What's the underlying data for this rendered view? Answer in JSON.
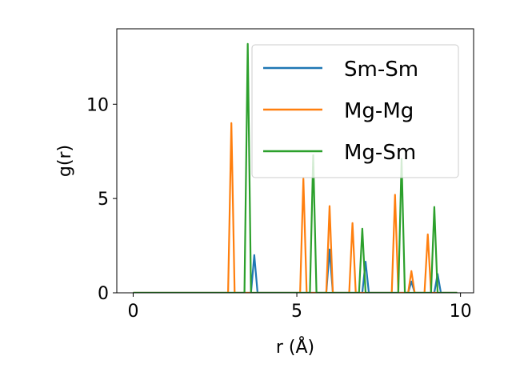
{
  "chart_data": {
    "type": "line",
    "title": "",
    "xlabel": "r (Å)",
    "ylabel": "g(r)",
    "xlim": [
      -0.5,
      10.4
    ],
    "ylim": [
      0,
      14
    ],
    "xticks": [
      0,
      5,
      10
    ],
    "xtick_labels": [
      "0",
      "5",
      "10"
    ],
    "yticks": [
      0,
      5,
      10
    ],
    "ytick_labels": [
      "0",
      "5",
      "10"
    ],
    "grid": false,
    "legend_position": "top-right",
    "series": [
      {
        "name": "Sm-Sm",
        "color": "#1f77b4",
        "x": [
          0,
          3.6,
          3.7,
          3.8,
          5.9,
          6.0,
          6.1,
          7.0,
          7.1,
          7.2,
          8.4,
          8.5,
          8.6,
          9.2,
          9.3,
          9.4,
          9.9
        ],
        "y": [
          0,
          0,
          2.0,
          0,
          0,
          2.3,
          0,
          0,
          1.65,
          0,
          0,
          0.6,
          0,
          0,
          1.0,
          0,
          0
        ]
      },
      {
        "name": "Mg-Mg",
        "color": "#ff7f0e",
        "x": [
          0,
          2.9,
          3.0,
          3.1,
          5.1,
          5.2,
          5.3,
          5.9,
          6.0,
          6.1,
          6.6,
          6.7,
          6.8,
          7.9,
          8.0,
          8.1,
          8.4,
          8.5,
          8.6,
          8.9,
          9.0,
          9.1,
          9.9
        ],
        "y": [
          0,
          0,
          9.0,
          0,
          0,
          6.05,
          0,
          0,
          4.6,
          0,
          0,
          3.7,
          0,
          0,
          5.2,
          0,
          0,
          1.15,
          0,
          0,
          3.1,
          0,
          0
        ]
      },
      {
        "name": "Mg-Sm",
        "color": "#2ca02c",
        "x": [
          0,
          3.4,
          3.5,
          3.6,
          5.4,
          5.5,
          5.6,
          6.9,
          7.0,
          7.1,
          8.1,
          8.2,
          8.3,
          9.1,
          9.2,
          9.3,
          9.9
        ],
        "y": [
          0,
          0,
          13.2,
          0,
          0,
          7.3,
          0,
          0,
          3.4,
          0,
          0,
          7.1,
          0,
          0,
          4.55,
          0,
          0
        ]
      }
    ]
  }
}
